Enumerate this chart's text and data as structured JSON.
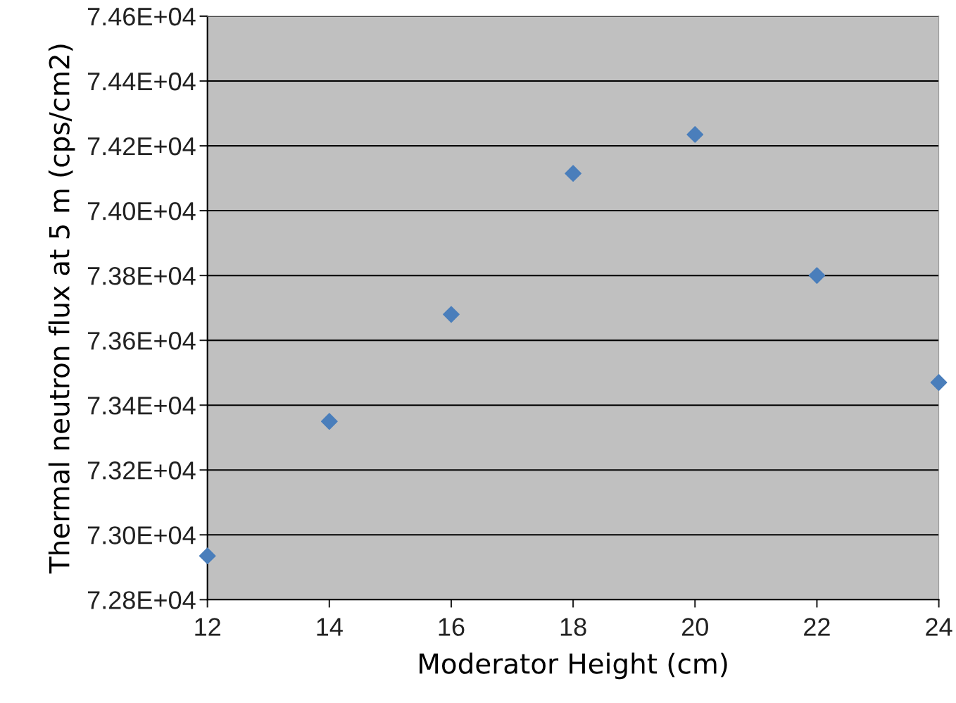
{
  "chart_data": {
    "type": "scatter",
    "xlabel": "Moderator Height (cm)",
    "ylabel": "Thermal neutron flux at 5 m (cps/cm2)",
    "x": [
      12,
      14,
      16,
      18,
      20,
      22,
      24
    ],
    "series": [
      {
        "color": "#4a7ebb",
        "values": [
          72935,
          73350,
          73680,
          74115,
          74235,
          73800,
          73470
        ]
      }
    ],
    "marker": "diamond",
    "grid": "y",
    "legend": false,
    "xlim": [
      12,
      24
    ],
    "xticks": [
      12,
      14,
      16,
      18,
      20,
      22,
      24
    ],
    "ylim": [
      72800,
      74600
    ],
    "yticks": [
      {
        "value": 72800,
        "label": "7.28E+04"
      },
      {
        "value": 73000,
        "label": "7.30E+04"
      },
      {
        "value": 73200,
        "label": "7.32E+04"
      },
      {
        "value": 73400,
        "label": "7.34E+04"
      },
      {
        "value": 73600,
        "label": "7.36E+04"
      },
      {
        "value": 73800,
        "label": "7.38E+04"
      },
      {
        "value": 74000,
        "label": "7.40E+04"
      },
      {
        "value": 74200,
        "label": "7.42E+04"
      },
      {
        "value": 74400,
        "label": "7.44E+04"
      },
      {
        "value": 74600,
        "label": "7.46E+04"
      }
    ]
  }
}
